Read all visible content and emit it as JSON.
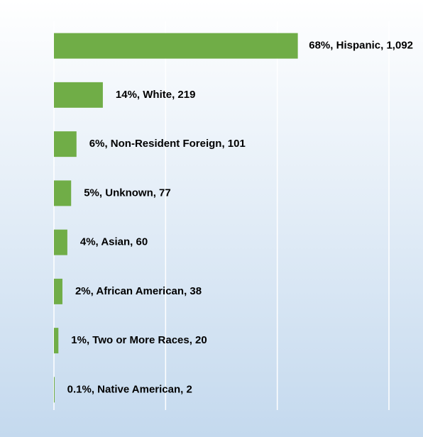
{
  "chart_data": {
    "type": "barh",
    "categories": [
      "Hispanic",
      "White",
      "Non-Resident Foreign",
      "Unknown",
      "Asian",
      "African American",
      "Two or More Races",
      "Native American"
    ],
    "values": [
      1092,
      219,
      101,
      77,
      60,
      38,
      20,
      2
    ],
    "value_labels": [
      "68%, Hispanic, 1,092",
      "14%, White, 219",
      "6%, Non-Resident Foreign, 101",
      "5%, Unknown, 77",
      "4%, Asian, 60",
      "2%, African American, 38",
      "1%, Two or More Races, 20",
      "0.1%, Native American, 2"
    ],
    "color": "#70ad47",
    "xlim": [
      0,
      1500
    ],
    "xticks": [
      0,
      500,
      1000,
      1500
    ],
    "grid": true
  }
}
